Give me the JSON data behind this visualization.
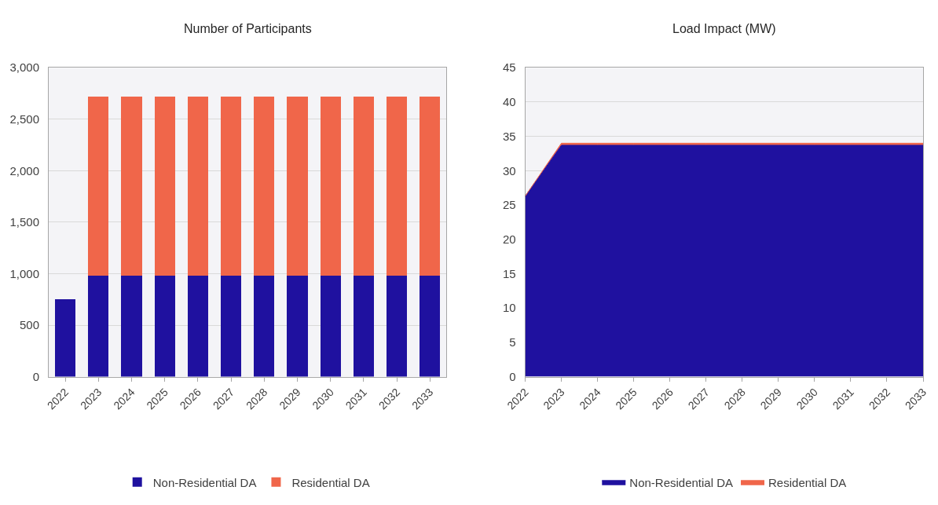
{
  "chart_data": [
    {
      "type": "bar",
      "title": "Number of Participants",
      "stacked": true,
      "categories": [
        "2022",
        "2023",
        "2024",
        "2025",
        "2026",
        "2027",
        "2028",
        "2029",
        "2030",
        "2031",
        "2032",
        "2033"
      ],
      "series": [
        {
          "name": "Non-Residential DA",
          "color": "#1f119f",
          "values": [
            750,
            980,
            980,
            980,
            980,
            980,
            980,
            980,
            980,
            980,
            980,
            980
          ]
        },
        {
          "name": "Residential DA",
          "color": "#f0664a",
          "values": [
            0,
            1740,
            1740,
            1740,
            1740,
            1740,
            1740,
            1740,
            1740,
            1740,
            1740,
            1740
          ]
        }
      ],
      "ylim": [
        0,
        3000
      ],
      "yticks": [
        {
          "value": 0,
          "label": "0"
        },
        {
          "value": 500,
          "label": "500"
        },
        {
          "value": 1000,
          "label": "1,000"
        },
        {
          "value": 1500,
          "label": "1,500"
        },
        {
          "value": 2000,
          "label": "2,000"
        },
        {
          "value": 2500,
          "label": "2,500"
        },
        {
          "value": 3000,
          "label": "3,000"
        }
      ],
      "grid": "y",
      "legend": "bottom"
    },
    {
      "type": "area",
      "title": "Load Impact (MW)",
      "stacked": true,
      "categories": [
        "2022",
        "2023",
        "2024",
        "2025",
        "2026",
        "2027",
        "2028",
        "2029",
        "2030",
        "2031",
        "2032",
        "2033"
      ],
      "series": [
        {
          "name": "Non-Residential DA",
          "color": "#1f119f",
          "values": [
            26.3,
            33.7,
            33.7,
            33.7,
            33.7,
            33.7,
            33.7,
            33.7,
            33.7,
            33.7,
            33.7,
            33.7
          ]
        },
        {
          "name": "Residential DA",
          "color": "#f0664a",
          "values": [
            0,
            0.3,
            0.3,
            0.3,
            0.3,
            0.3,
            0.3,
            0.3,
            0.3,
            0.3,
            0.3,
            0.3
          ]
        }
      ],
      "ylim": [
        0,
        45
      ],
      "yticks": [
        0,
        5,
        10,
        15,
        20,
        25,
        30,
        35,
        40,
        45
      ],
      "grid": "y",
      "legend": "bottom"
    }
  ]
}
